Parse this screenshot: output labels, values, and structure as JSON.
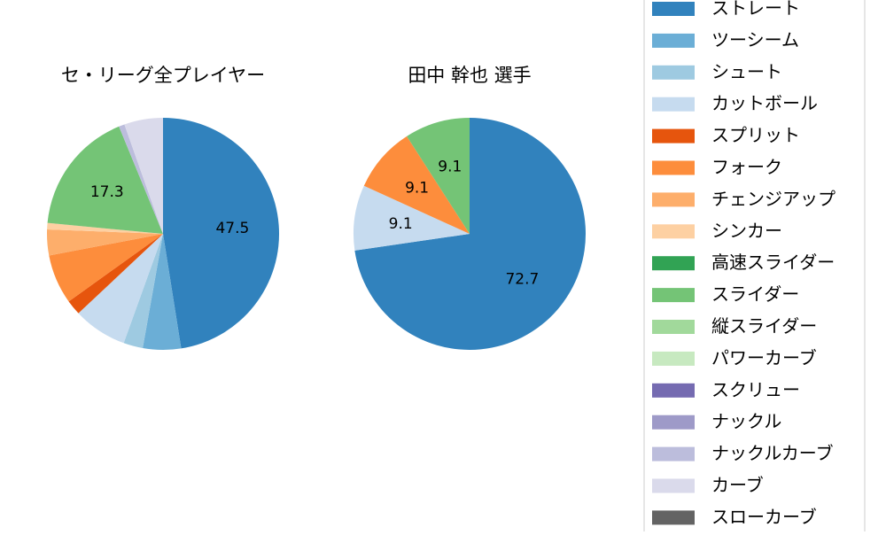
{
  "chart_data": [
    {
      "type": "pie",
      "title": "セ・リーグ全プレイヤー",
      "start_angle_deg": 90,
      "direction": "clockwise",
      "slices": [
        {
          "label": "ストレート",
          "value": 47.5,
          "color": "#3182bd",
          "show_label": true
        },
        {
          "label": "ツーシーム",
          "value": 5.3,
          "color": "#6baed6",
          "show_label": false
        },
        {
          "label": "シュート",
          "value": 2.7,
          "color": "#9ecae1",
          "show_label": false
        },
        {
          "label": "カットボール",
          "value": 7.5,
          "color": "#c6dbef",
          "show_label": false
        },
        {
          "label": "スプリット",
          "value": 2.1,
          "color": "#e6550d",
          "show_label": false
        },
        {
          "label": "フォーク",
          "value": 6.9,
          "color": "#fd8d3c",
          "show_label": false
        },
        {
          "label": "チェンジアップ",
          "value": 3.6,
          "color": "#fdae6b",
          "show_label": false
        },
        {
          "label": "シンカー",
          "value": 0.9,
          "color": "#fdd0a2",
          "show_label": false
        },
        {
          "label": "スライダー",
          "value": 17.3,
          "color": "#74c476",
          "show_label": true
        },
        {
          "label": "ナックルカーブ",
          "value": 0.8,
          "color": "#bcbddc",
          "show_label": false
        },
        {
          "label": "カーブ",
          "value": 5.4,
          "color": "#dadaeb",
          "show_label": false
        }
      ]
    },
    {
      "type": "pie",
      "title": "田中 幹也  選手",
      "start_angle_deg": 90,
      "direction": "clockwise",
      "slices": [
        {
          "label": "ストレート",
          "value": 72.7,
          "color": "#3182bd",
          "show_label": true
        },
        {
          "label": "カットボール",
          "value": 9.1,
          "color": "#c6dbef",
          "show_label": true
        },
        {
          "label": "フォーク",
          "value": 9.1,
          "color": "#fd8d3c",
          "show_label": true
        },
        {
          "label": "スライダー",
          "value": 9.1,
          "color": "#74c476",
          "show_label": true
        }
      ]
    }
  ],
  "legend": {
    "placement": "right",
    "items": [
      {
        "label": "ストレート",
        "color": "#3182bd"
      },
      {
        "label": "ツーシーム",
        "color": "#6baed6"
      },
      {
        "label": "シュート",
        "color": "#9ecae1"
      },
      {
        "label": "カットボール",
        "color": "#c6dbef"
      },
      {
        "label": "スプリット",
        "color": "#e6550d"
      },
      {
        "label": "フォーク",
        "color": "#fd8d3c"
      },
      {
        "label": "チェンジアップ",
        "color": "#fdae6b"
      },
      {
        "label": "シンカー",
        "color": "#fdd0a2"
      },
      {
        "label": "高速スライダー",
        "color": "#31a354"
      },
      {
        "label": "スライダー",
        "color": "#74c476"
      },
      {
        "label": "縦スライダー",
        "color": "#a1d99b"
      },
      {
        "label": "パワーカーブ",
        "color": "#c7e9c0"
      },
      {
        "label": "スクリュー",
        "color": "#756bb1"
      },
      {
        "label": "ナックル",
        "color": "#9e9ac8"
      },
      {
        "label": "ナックルカーブ",
        "color": "#bcbddc"
      },
      {
        "label": "カーブ",
        "color": "#dadaeb"
      },
      {
        "label": "スローカーブ",
        "color": "#636363"
      }
    ]
  }
}
